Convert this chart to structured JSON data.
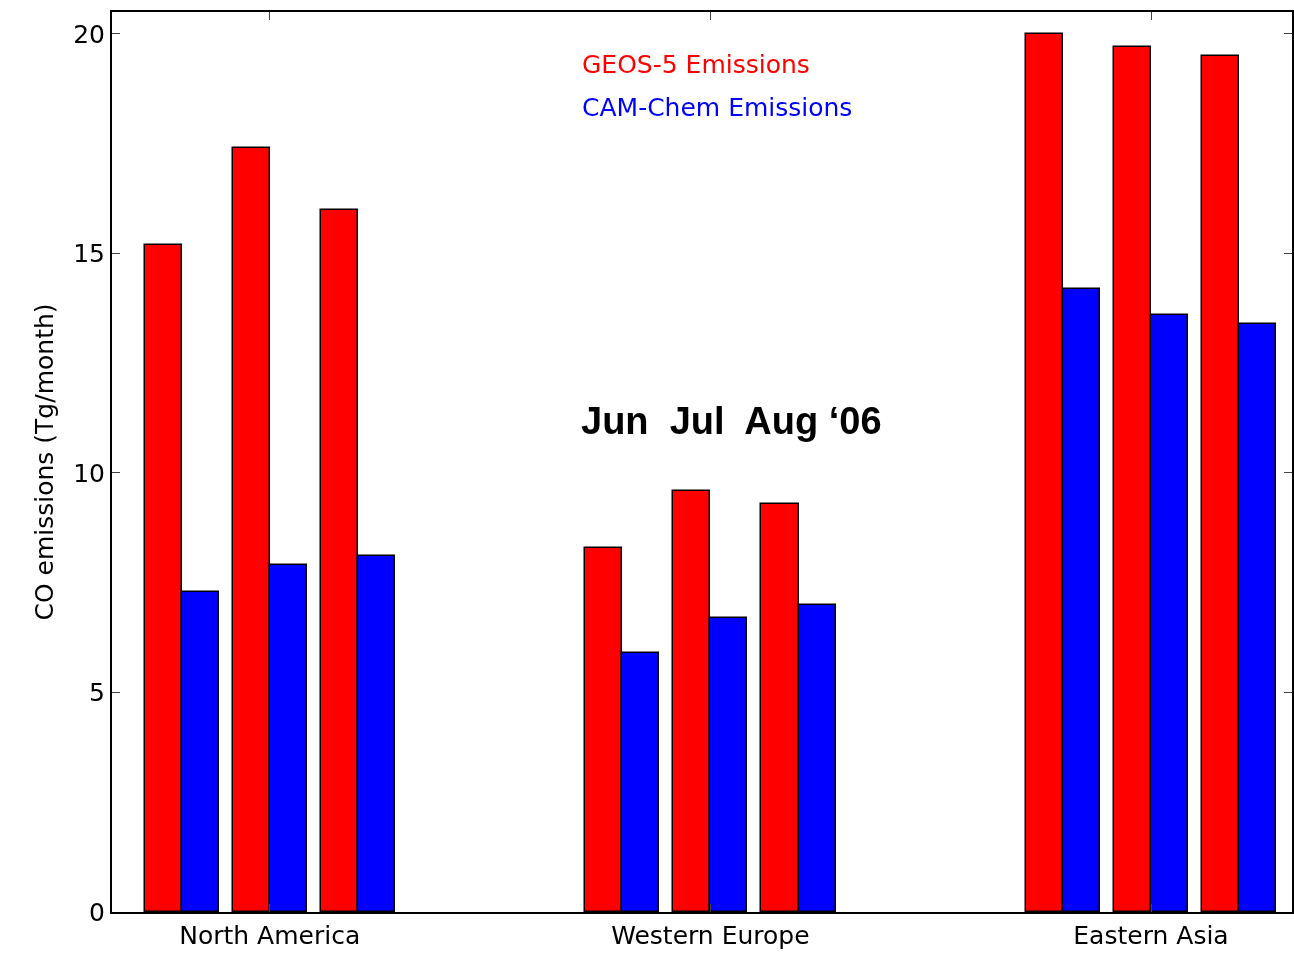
{
  "chart_data": {
    "type": "bar",
    "ylabel": "CO emissions (Tg/month)",
    "categories": [
      null,
      "North America",
      null,
      null,
      null,
      null,
      "Western Europe",
      null,
      null,
      null,
      null,
      "Eastern Asia",
      null
    ],
    "series": [
      {
        "name": "GEOS-5 Emissions",
        "color": "#ff0000",
        "values": [
          15.2,
          17.4,
          16.0,
          null,
          null,
          8.3,
          9.6,
          9.3,
          null,
          null,
          20.0,
          19.7,
          19.5
        ]
      },
      {
        "name": "CAM-Chem Emissions",
        "color": "#0000ff",
        "values": [
          7.3,
          7.9,
          8.1,
          null,
          null,
          5.9,
          6.7,
          7.0,
          null,
          null,
          14.2,
          13.6,
          13.4
        ]
      }
    ],
    "ylim": [
      0,
      20.5
    ],
    "yticks": [
      0,
      5,
      10,
      15,
      20
    ],
    "annotations": [
      "Jun  Jul  Aug ‘06"
    ],
    "legend": "top",
    "grid": false
  }
}
